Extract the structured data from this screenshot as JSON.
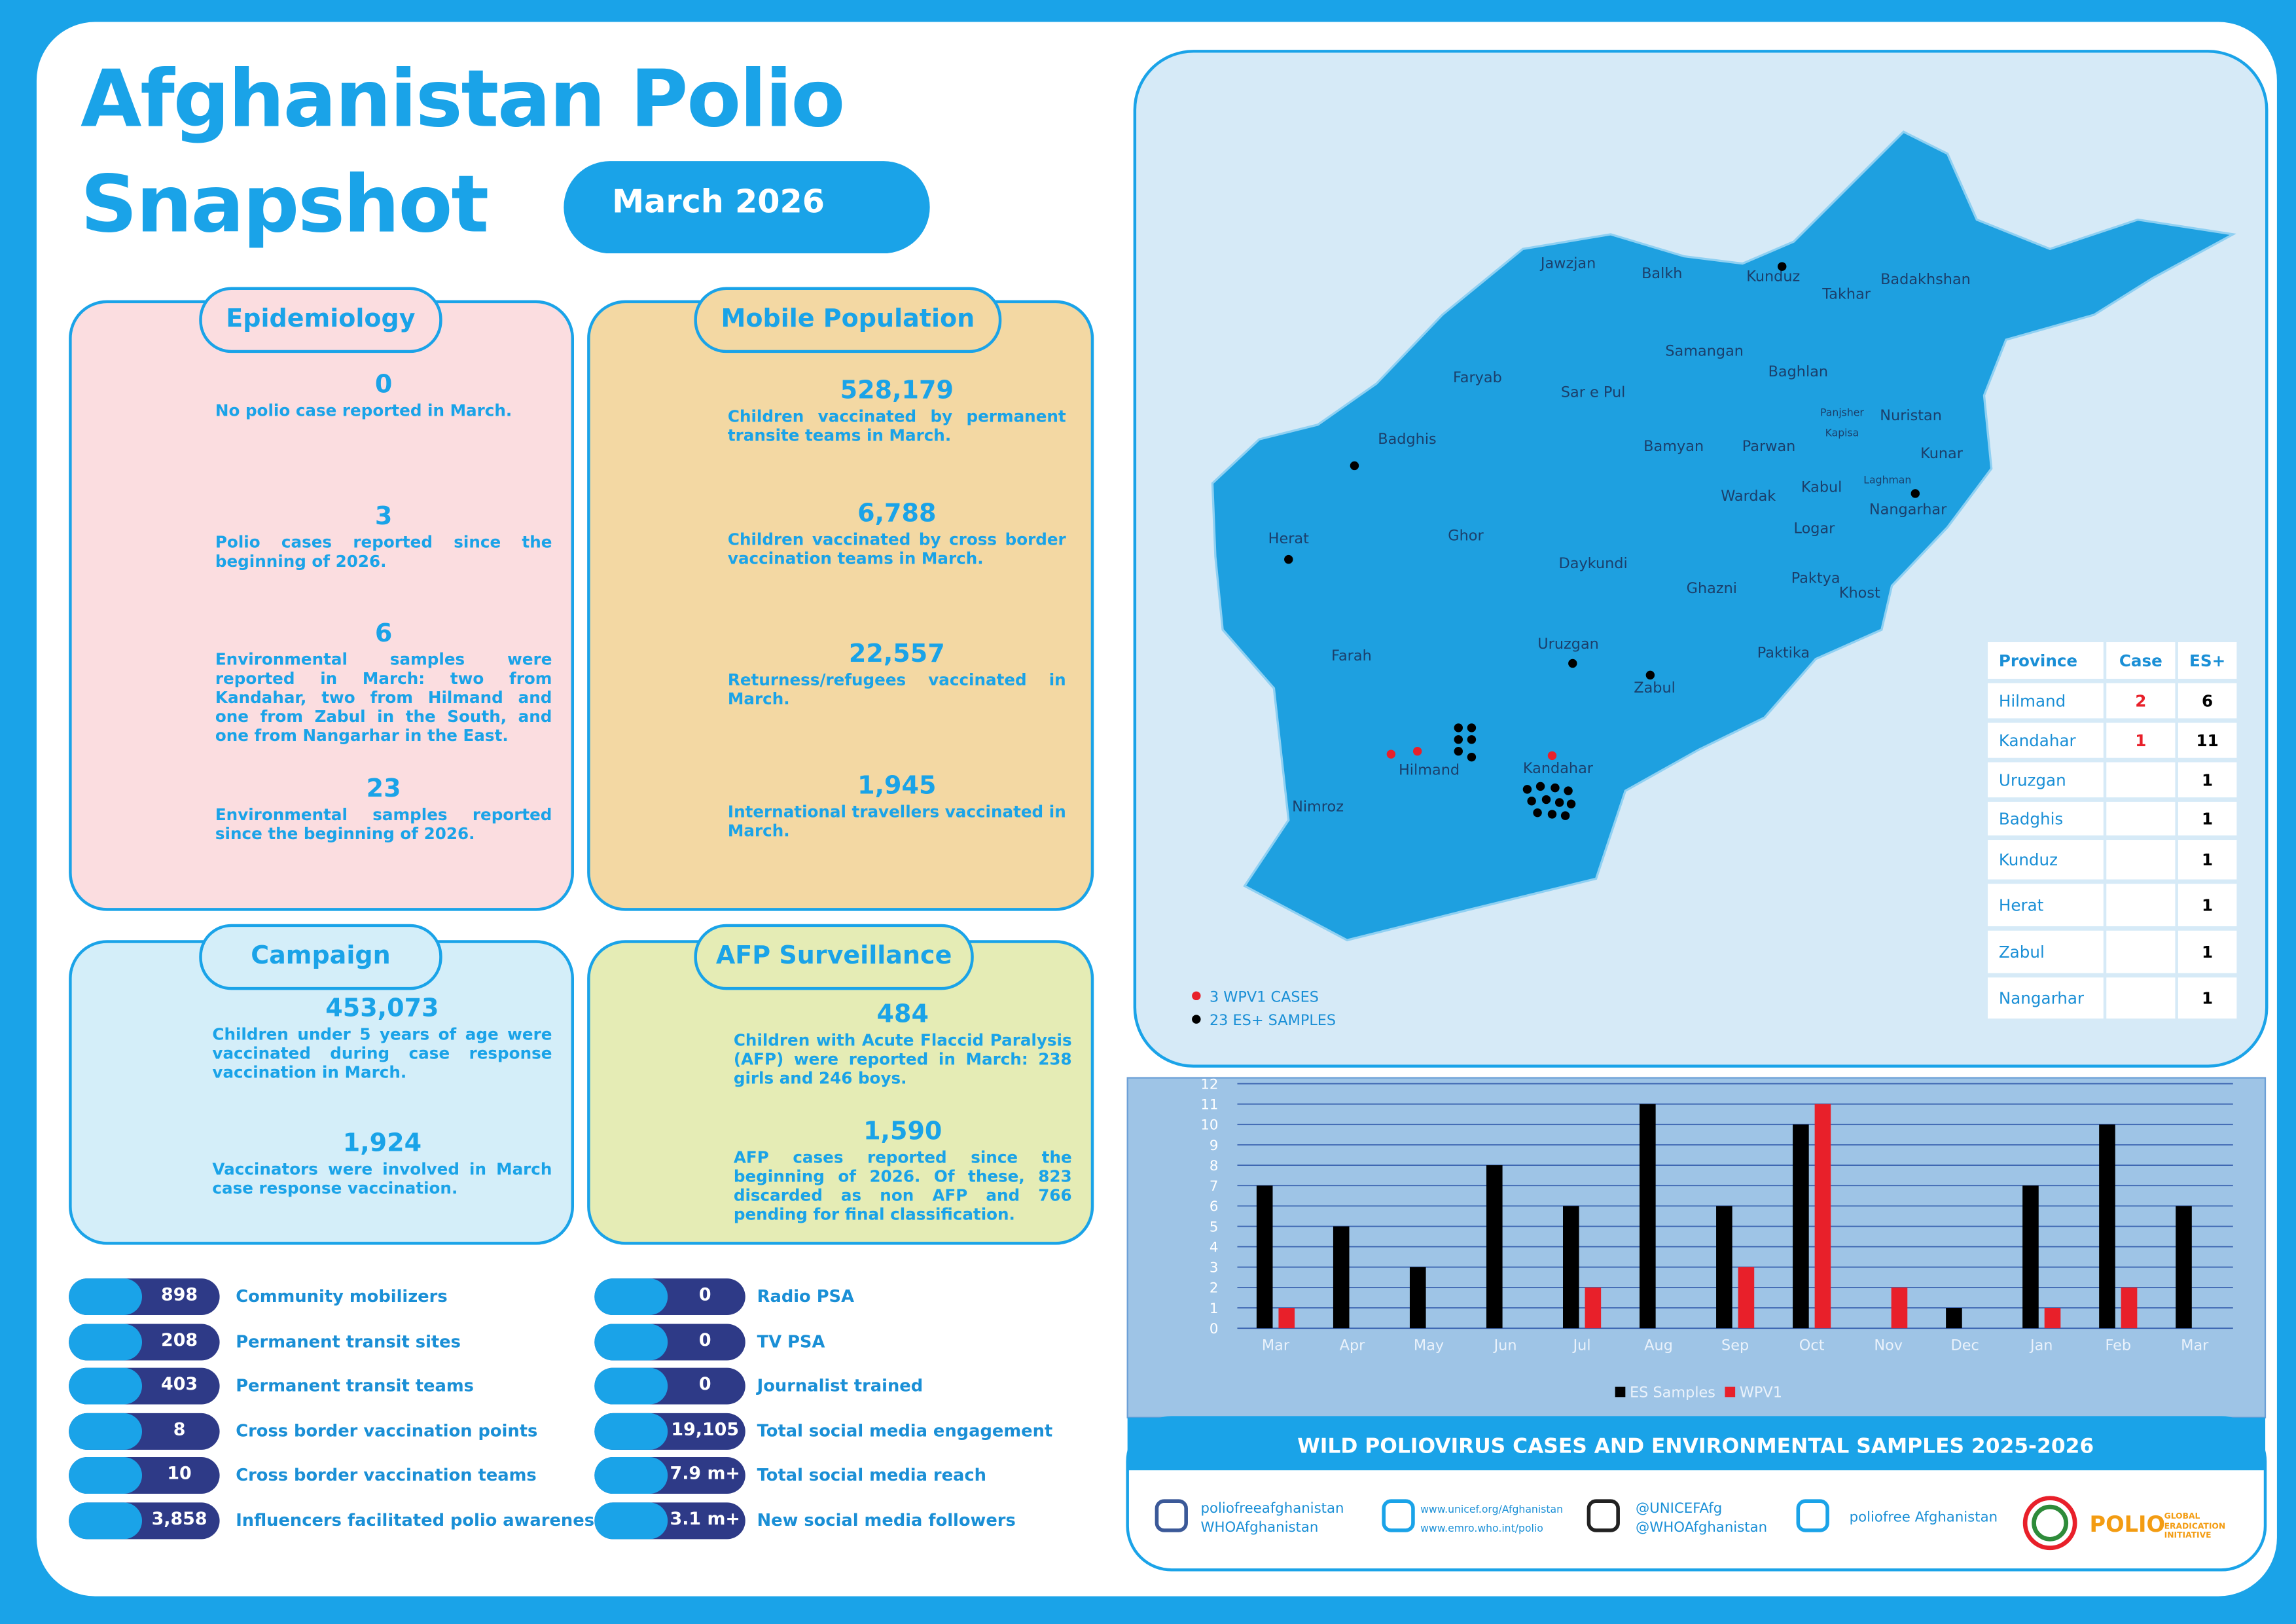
{
  "header": {
    "title_line1": "Afghanistan Polio",
    "title_line2": "Snapshot",
    "period": "March 2026"
  },
  "epidemiology": {
    "title": "Epidemiology",
    "items": [
      {
        "number": "0",
        "text": "No polio case reported in March."
      },
      {
        "number": "3",
        "text": "Polio cases reported since the beginning of 2026."
      },
      {
        "number": "6",
        "text": "Environmental samples were reported in March: two from Kandahar, two from Hilmand and one from Zabul in the South, and one from Nangarhar in the East."
      },
      {
        "number": "23",
        "text": "Environmental samples reported since the beginning of 2026."
      }
    ]
  },
  "mobile_population": {
    "title": "Mobile Population",
    "items": [
      {
        "number": "528,179",
        "text": "Children vaccinated by permanent transite teams in March."
      },
      {
        "number": "6,788",
        "text": "Children vaccinated by cross border vaccination teams in March."
      },
      {
        "number": "22,557",
        "text": "Returness/refugees vaccinated in March."
      },
      {
        "number": "1,945",
        "text": "International travellers vaccinated in March."
      }
    ]
  },
  "campaign": {
    "title": "Campaign",
    "items": [
      {
        "number": "453,073",
        "text": "Children under 5 years of age were vaccinated during case response vaccination in March."
      },
      {
        "number": "1,924",
        "text": "Vaccinators were involved in March case response vaccination."
      }
    ]
  },
  "afp_surveillance": {
    "title": "AFP Surveillance",
    "items": [
      {
        "number": "484",
        "text": "Children with Acute Flaccid Paralysis (AFP) were reported in March: 238 girls and 246 boys."
      },
      {
        "number": "1,590",
        "text": "AFP cases reported since the beginning of 2026. Of these, 823 discarded as non AFP and 766 pending for final classification."
      }
    ]
  },
  "activities_left": [
    {
      "number": "898",
      "label": "Community mobilizers"
    },
    {
      "number": "208",
      "label": "Permanent transit sites"
    },
    {
      "number": "403",
      "label": "Permanent transit teams"
    },
    {
      "number": "8",
      "label": "Cross border vaccination points"
    },
    {
      "number": "10",
      "label": "Cross border vaccination teams"
    },
    {
      "number": "3,858",
      "label": "Influencers facilitated polio awareness"
    }
  ],
  "activities_right": [
    {
      "number": "0",
      "label": "Radio PSA"
    },
    {
      "number": "0",
      "label": "TV PSA"
    },
    {
      "number": "0",
      "label": "Journalist trained"
    },
    {
      "number": "19,105",
      "label": "Total social media engagement"
    },
    {
      "number": "7.9 m+",
      "label": "Total social media reach"
    },
    {
      "number": "3.1 m+",
      "label": "New social media followers"
    }
  ],
  "map": {
    "provinces": [
      "Jawzjan",
      "Balkh",
      "Kunduz",
      "Takhar",
      "Badakhshan",
      "Samangan",
      "Faryab",
      "Baghlan",
      "Sar e Pul",
      "Panjsher",
      "Nuristan",
      "Kapisa",
      "Badghis",
      "Bamyan",
      "Parwan",
      "Kunar",
      "Wardak",
      "Kabul",
      "Laghman",
      "Nangarhar",
      "Herat",
      "Ghor",
      "Logar",
      "Daykundi",
      "Paktya",
      "Ghazni",
      "Khost",
      "Farah",
      "Uruzgan",
      "Paktika",
      "Zabul",
      "Hilmand",
      "Kandahar",
      "Nimroz"
    ],
    "legend": [
      "3 WPV1 CASES",
      "23 ES+ SAMPLES"
    ],
    "table": {
      "headers": [
        "Province",
        "Case",
        "ES+"
      ],
      "rows": [
        [
          "Hilmand",
          "2",
          "6"
        ],
        [
          "Kandahar",
          "1",
          "11"
        ],
        [
          "Uruzgan",
          null,
          "1"
        ],
        [
          "Badghis",
          null,
          "1"
        ],
        [
          "Kunduz",
          null,
          "1"
        ],
        [
          "Herat",
          null,
          "1"
        ],
        [
          "Zabul",
          null,
          "1"
        ],
        [
          "Nangarhar",
          null,
          "1"
        ]
      ]
    }
  },
  "chart_data": {
    "type": "bar",
    "title": "WILD POLIOVIRUS CASES AND ENVIRONMENTAL SAMPLES 2025-2026",
    "categories": [
      "Mar",
      "Apr",
      "May",
      "Jun",
      "Jul",
      "Aug",
      "Sep",
      "Oct",
      "Nov",
      "Dec",
      "Jan",
      "Feb",
      "Mar"
    ],
    "series": [
      {
        "name": "ES Samples",
        "color": "#000000",
        "values": [
          7,
          5,
          3,
          8,
          6,
          11,
          6,
          10,
          0,
          1,
          7,
          10,
          6
        ]
      },
      {
        "name": "WPV1",
        "color": "#e8202a",
        "values": [
          1,
          0,
          0,
          0,
          2,
          0,
          3,
          11,
          2,
          0,
          1,
          2,
          0
        ]
      }
    ],
    "ylim": [
      0,
      12
    ],
    "yticks": [
      0,
      1,
      2,
      3,
      4,
      5,
      6,
      7,
      8,
      9,
      10,
      11,
      12
    ],
    "grid": true
  },
  "footer": {
    "items": [
      {
        "line1": "poliofreeafghanistan",
        "line2": "WHOAfghanistan"
      },
      {
        "line1": "www.unicef.org/Afghanistan",
        "line2": "www.emro.who.int/polio"
      },
      {
        "line1": "@UNICEFAfg",
        "line2": "@WHOAfghanistan"
      },
      {
        "line1": "poliofree Afghanistan"
      }
    ],
    "logo": "POLIO",
    "logo_sub": "GLOBAL ERADICATION INITIATIVE"
  }
}
